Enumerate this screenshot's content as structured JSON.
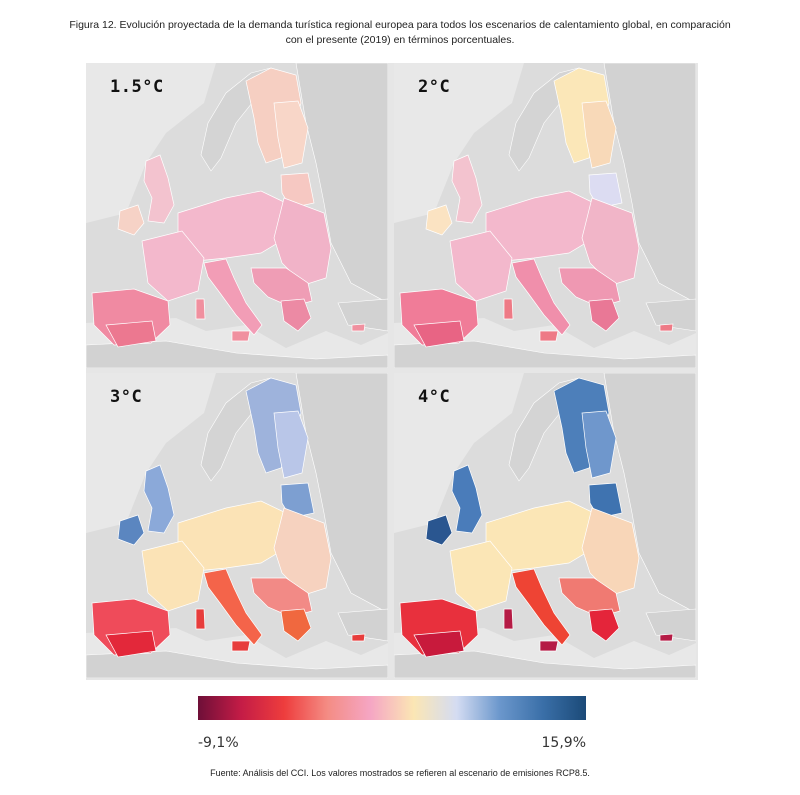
{
  "figure": {
    "caption_line1": "Figura 12. Evolución proyectada de la demanda turística regional europea para todos los escenarios de calentamiento global, en comparación",
    "caption_line2": "con el presente (2019) en términos porcentuales.",
    "source": "Fuente: Análisis del CCI. Los valores mostrados se refieren al escenario de emisiones RCP8.5."
  },
  "panels": [
    {
      "label": "1.5°C",
      "colors": {
        "north": "#f6cfc2",
        "nordic_east": "#f8d6c8",
        "baltic": "#f6c8c2",
        "uk": "#f3c3cf",
        "ireland": "#f6d2c6",
        "central": "#f3b8cc",
        "east": "#f1b3c8",
        "iberia": "#f08aa2",
        "iberia_south": "#ec7890",
        "italy": "#f29db6",
        "balkans": "#ef9db5",
        "greece": "#ec8aa4",
        "islands": "#f0909f"
      }
    },
    {
      "label": "2°C",
      "colors": {
        "north": "#fbe7b8",
        "nordic_east": "#f8d9b8",
        "baltic": "#dcdcf2",
        "uk": "#f3c3cf",
        "ireland": "#fbe3c2",
        "central": "#f3b8cc",
        "east": "#f1b5c8",
        "iberia": "#f07c98",
        "iberia_south": "#e86484",
        "italy": "#f08fab",
        "balkans": "#ef98b2",
        "greece": "#e97896",
        "islands": "#ee7a86"
      }
    },
    {
      "label": "3°C",
      "colors": {
        "north": "#9eb3dc",
        "nordic_east": "#b9c6e8",
        "baltic": "#7d9fd1",
        "uk": "#8ba9d9",
        "ireland": "#5b86c0",
        "central": "#fbe3b6",
        "east": "#f6d2bf",
        "iberia": "#ef4b5a",
        "iberia_south": "#e3283a",
        "italy": "#f4644a",
        "balkans": "#f28a86",
        "greece": "#f0683f",
        "islands": "#e73d3c"
      }
    },
    {
      "label": "4°C",
      "colors": {
        "north": "#4d7fba",
        "nordic_east": "#6f97cc",
        "baltic": "#3f73b0",
        "uk": "#4a7cba",
        "ireland": "#2a5690",
        "central": "#fbe6b6",
        "east": "#f8d6b8",
        "iberia": "#e8303d",
        "iberia_south": "#c81a3c",
        "italy": "#ee4434",
        "balkans": "#f07a72",
        "greece": "#e4253a",
        "islands": "#b51b45"
      }
    }
  ],
  "legend": {
    "min_label": "-9,1%",
    "max_label": "15,9%",
    "min_value": -9.1,
    "max_value": 15.9,
    "stops": [
      "#6e0f38",
      "#c41c46",
      "#ee3d3d",
      "#f48c84",
      "#f5a6c4",
      "#fbe6b4",
      "#d4dcf2",
      "#6b97cc",
      "#3a6fa8",
      "#1b4a78"
    ]
  }
}
